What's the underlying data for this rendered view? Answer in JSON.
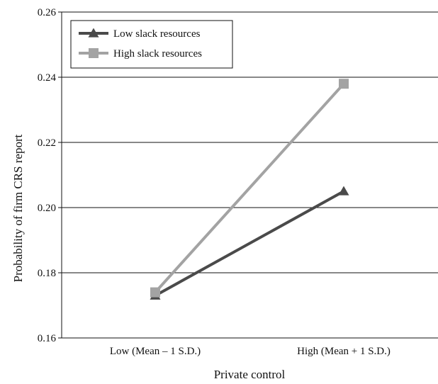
{
  "chart_data": {
    "type": "line",
    "title": "",
    "xlabel": "Private control",
    "ylabel": "Probability of firm CRS report",
    "categories": [
      "Low (Mean – 1 S.D.)",
      "High (Mean + 1 S.D.)"
    ],
    "ylim": [
      0.16,
      0.26
    ],
    "yticks": [
      "0.16",
      "0.18",
      "0.20",
      "0.22",
      "0.24",
      "0.26"
    ],
    "grid": "horizontal",
    "legend_position": "top-left",
    "series": [
      {
        "name": "Low slack resources",
        "values": [
          0.173,
          0.205
        ],
        "color": "#4a4a4a",
        "marker": "triangle"
      },
      {
        "name": "High slack resources",
        "values": [
          0.174,
          0.238
        ],
        "color": "#a3a3a3",
        "marker": "square"
      }
    ]
  }
}
